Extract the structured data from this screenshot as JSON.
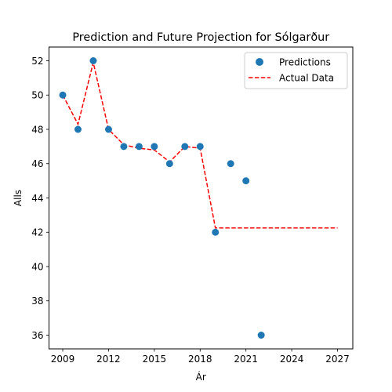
{
  "chart_data": {
    "type": "scatter",
    "title": "Prediction and Future Projection for Sólgarður",
    "xlabel": "Ár",
    "ylabel": "Alls",
    "xlim": [
      2008.1,
      2028.0
    ],
    "ylim": [
      35.2,
      52.8
    ],
    "xticks": [
      2009,
      2012,
      2015,
      2018,
      2021,
      2024,
      2027
    ],
    "yticks": [
      36,
      38,
      40,
      42,
      44,
      46,
      48,
      50,
      52
    ],
    "grid": false,
    "legend": {
      "placement": "top-right",
      "entries": [
        "Predictions",
        "Actual Data"
      ]
    },
    "series": [
      {
        "name": "Predictions",
        "kind": "scatter",
        "color": "#1f77b4",
        "x": [
          2009,
          2010,
          2011,
          2012,
          2013,
          2014,
          2015,
          2016,
          2017,
          2018,
          2019,
          2020,
          2021,
          2022
        ],
        "y": [
          50,
          48,
          52,
          48,
          47,
          47,
          47,
          46,
          47,
          47,
          42,
          46,
          45,
          36
        ]
      },
      {
        "name": "Actual Data",
        "kind": "line",
        "style": "dashed",
        "color": "#ff0000",
        "x": [
          2009,
          2010,
          2011,
          2012,
          2013,
          2014,
          2015,
          2016,
          2017,
          2018,
          2019,
          2020,
          2021,
          2022,
          2023,
          2024,
          2025,
          2026,
          2027
        ],
        "y": [
          50.0,
          48.3,
          51.9,
          48.0,
          47.1,
          46.9,
          46.8,
          46.1,
          47.0,
          46.9,
          42.25,
          42.25,
          42.25,
          42.25,
          42.25,
          42.25,
          42.25,
          42.25,
          42.25
        ]
      }
    ]
  }
}
